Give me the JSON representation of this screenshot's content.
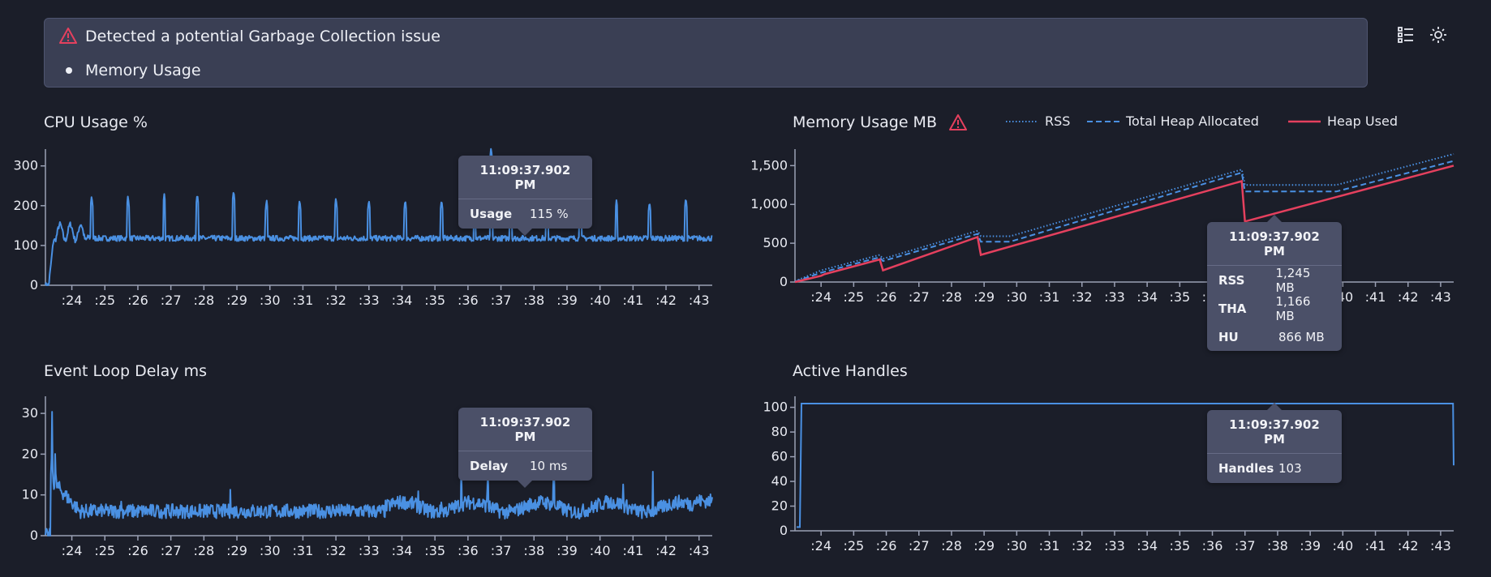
{
  "alert": {
    "title": "Detected a potential Garbage Collection issue",
    "items": [
      "Memory Usage"
    ],
    "accent": "#e5405e"
  },
  "toolbar": {
    "icons": [
      "list-view-icon",
      "theme-sun-icon"
    ]
  },
  "colors": {
    "blue": "#4a90e2",
    "red": "#e5405e",
    "axis": "#9aa0b4",
    "background": "#1b1e29"
  },
  "x_ticks": [
    ":24",
    ":25",
    ":26",
    ":27",
    ":28",
    ":29",
    ":30",
    ":31",
    ":32",
    ":33",
    ":34",
    ":35",
    ":36",
    ":37",
    ":38",
    ":39",
    ":40",
    ":41",
    ":42",
    ":43"
  ],
  "tooltip_time": "11:09:37.902 PM",
  "chart_data": [
    {
      "id": "cpu",
      "type": "line",
      "title": "CPU Usage %",
      "x_range": [
        23.2,
        43.4
      ],
      "ylim": [
        0,
        330
      ],
      "yticks": [
        0,
        100,
        200,
        300
      ],
      "baseline": 118,
      "spikes": [
        [
          24.6,
          225
        ],
        [
          25.7,
          225
        ],
        [
          26.8,
          230
        ],
        [
          27.8,
          230
        ],
        [
          28.9,
          238
        ],
        [
          29.9,
          215
        ],
        [
          30.9,
          215
        ],
        [
          32.0,
          220
        ],
        [
          33.0,
          215
        ],
        [
          34.1,
          215
        ],
        [
          35.2,
          215
        ],
        [
          36.2,
          215
        ],
        [
          36.7,
          345
        ],
        [
          37.3,
          220
        ],
        [
          38.4,
          215
        ],
        [
          39.4,
          215
        ],
        [
          40.5,
          215
        ],
        [
          41.5,
          210
        ],
        [
          42.6,
          220
        ]
      ],
      "tooltip": {
        "time": "11:09:37.902 PM",
        "rows": [
          {
            "label": "Usage",
            "value": "115 %"
          }
        ]
      }
    },
    {
      "id": "memory",
      "type": "line",
      "title": "Memory Usage MB",
      "warning": true,
      "x_range": [
        23.2,
        43.4
      ],
      "ylim": [
        0,
        1650
      ],
      "yticks": [
        0,
        500,
        1000,
        1500
      ],
      "ytick_labels": [
        "0",
        "500",
        "1,000",
        "1,500"
      ],
      "legend_position": "top",
      "series": [
        {
          "name": "RSS",
          "style": "dotted",
          "color": "#4a90e2",
          "points": [
            [
              23.2,
              10
            ],
            [
              24.0,
              150
            ],
            [
              25.8,
              350
            ],
            [
              25.9,
              300
            ],
            [
              28.8,
              660
            ],
            [
              28.9,
              590
            ],
            [
              29.8,
              590
            ],
            [
              36.9,
              1450
            ],
            [
              37.0,
              1250
            ],
            [
              39.8,
              1250
            ],
            [
              43.4,
              1650
            ]
          ]
        },
        {
          "name": "Total Heap Allocated",
          "style": "dashed",
          "color": "#4a90e2",
          "points": [
            [
              23.2,
              5
            ],
            [
              24.0,
              120
            ],
            [
              25.8,
              320
            ],
            [
              25.9,
              270
            ],
            [
              28.8,
              620
            ],
            [
              28.9,
              520
            ],
            [
              29.8,
              520
            ],
            [
              36.9,
              1410
            ],
            [
              37.0,
              1166
            ],
            [
              39.8,
              1166
            ],
            [
              43.4,
              1560
            ]
          ]
        },
        {
          "name": "Heap Used",
          "style": "solid",
          "color": "#e5405e",
          "points": [
            [
              23.2,
              0
            ],
            [
              24.0,
              80
            ],
            [
              24.1,
              100
            ],
            [
              25.8,
              290
            ],
            [
              25.9,
              150
            ],
            [
              28.8,
              580
            ],
            [
              28.9,
              350
            ],
            [
              36.9,
              1300
            ],
            [
              37.0,
              780
            ],
            [
              43.4,
              1500
            ]
          ]
        }
      ],
      "tooltip": {
        "time": "11:09:37.902 PM",
        "rows": [
          {
            "label": "RSS",
            "value": "1,245 MB"
          },
          {
            "label": "THA",
            "value": "1,166 MB"
          },
          {
            "label": "HU",
            "value": "866 MB"
          }
        ]
      }
    },
    {
      "id": "eventloop",
      "type": "line",
      "title": "Event Loop Delay ms",
      "x_range": [
        23.2,
        43.4
      ],
      "ylim": [
        0,
        33
      ],
      "yticks": [
        0,
        10,
        20,
        30
      ],
      "spikes": [
        [
          23.4,
          32
        ],
        [
          23.5,
          25
        ],
        [
          24.2,
          12
        ],
        [
          24.9,
          11
        ],
        [
          25.5,
          12
        ],
        [
          26.6,
          9
        ],
        [
          28.8,
          12
        ],
        [
          29.8,
          10
        ],
        [
          31.9,
          11
        ],
        [
          34.5,
          16
        ],
        [
          35.2,
          15
        ],
        [
          35.8,
          19
        ],
        [
          36.6,
          22
        ],
        [
          37.9,
          12
        ],
        [
          38.6,
          24
        ],
        [
          40.2,
          12
        ],
        [
          40.7,
          13
        ],
        [
          41.6,
          16
        ],
        [
          42.4,
          13
        ],
        [
          42.6,
          15
        ]
      ],
      "tooltip": {
        "time": "11:09:37.902 PM",
        "rows": [
          {
            "label": "Delay",
            "value": "10 ms"
          }
        ]
      }
    },
    {
      "id": "handles",
      "type": "line",
      "title": "Active Handles",
      "x_range": [
        23.2,
        43.4
      ],
      "ylim": [
        0,
        105
      ],
      "yticks": [
        0,
        20,
        40,
        60,
        80,
        100
      ],
      "series": [
        {
          "name": "Handles",
          "color": "#4a90e2",
          "points": [
            [
              23.25,
              3
            ],
            [
              23.35,
              3
            ],
            [
              23.4,
              103
            ],
            [
              43.38,
              103
            ],
            [
              43.4,
              53
            ]
          ]
        }
      ],
      "tooltip": {
        "time": "11:09:37.902 PM",
        "rows": [
          {
            "label": "Handles",
            "value": "103"
          }
        ]
      }
    }
  ]
}
